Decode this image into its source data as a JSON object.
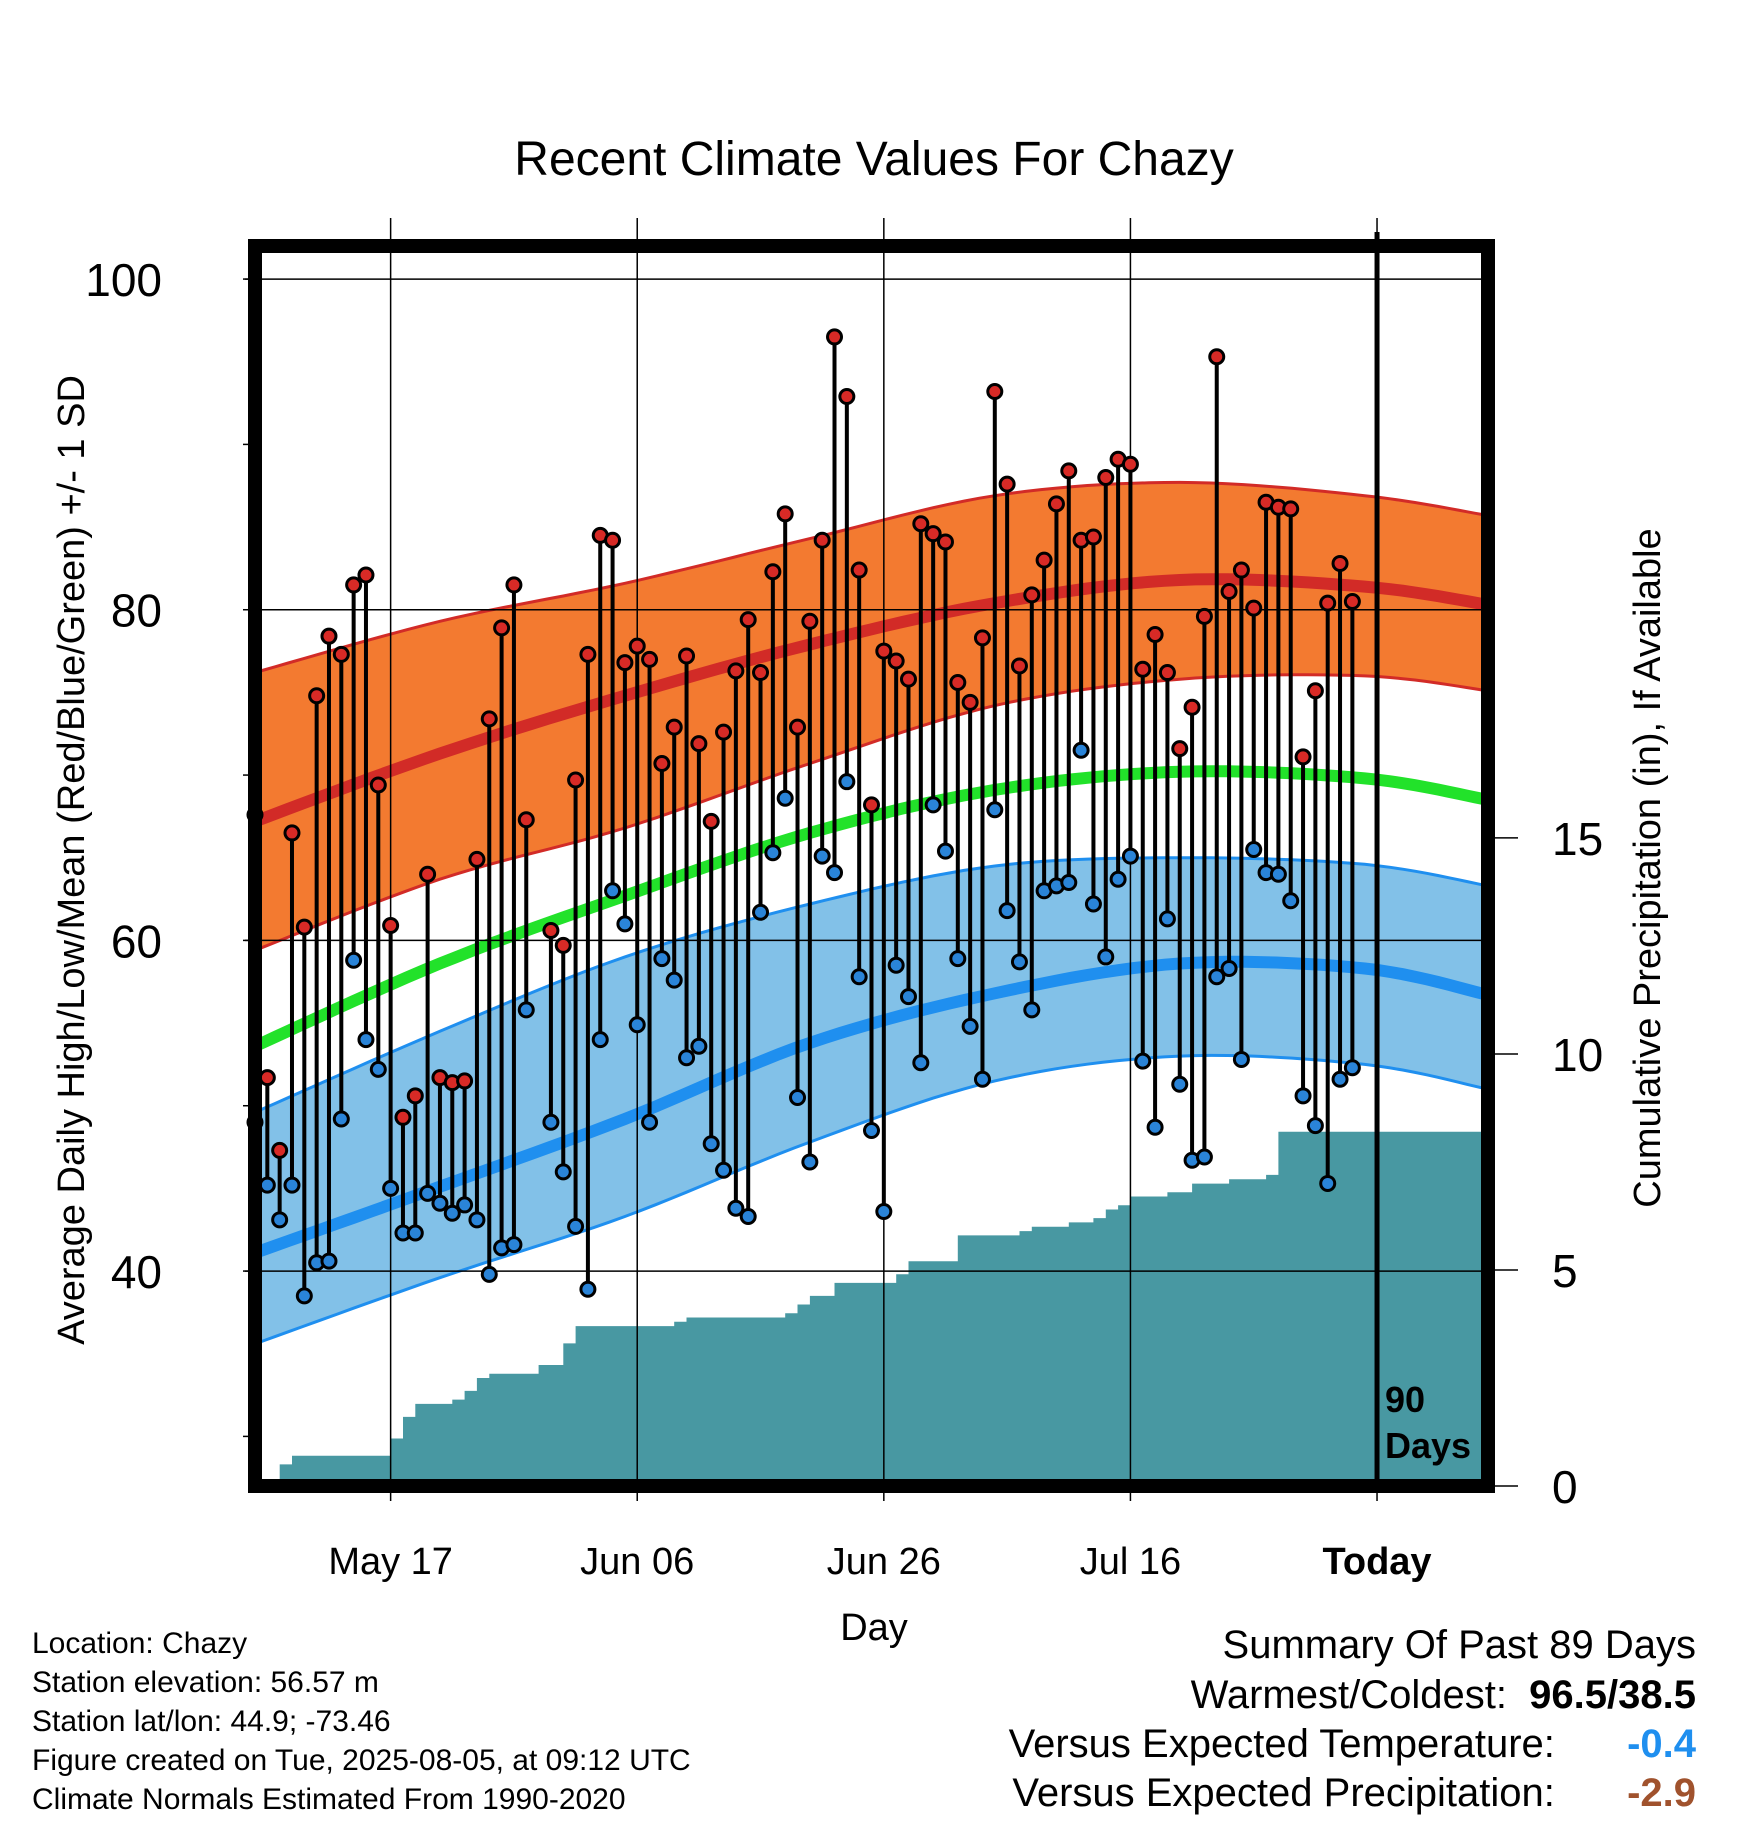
{
  "chart_data": {
    "type": "line",
    "title": "Recent Climate Values For Chazy",
    "xlabel": "Day",
    "ylabel": "Average Daily High/Low/Mean (Red/Blue/Green) +/- 1 SD",
    "y2label": "Cumulative Precipitation (in), If Available",
    "ylim": [
      27,
      102
    ],
    "y_ticks": [
      40,
      60,
      80,
      100
    ],
    "y2lim": [
      0,
      28.7
    ],
    "y2_ticks": [
      0,
      5,
      10,
      15
    ],
    "x_tick_labels": [
      "May 17",
      "Jun 06",
      "Jun 26",
      "Jul 16",
      "Today"
    ],
    "x_tick_days": [
      "2025-05-17",
      "2025-06-06",
      "2025-06-26",
      "2025-07-16",
      "2025-08-05"
    ],
    "x_start": "2025-05-06",
    "x_end": "2025-08-14",
    "today_marker": {
      "date": "2025-08-05",
      "label": "90 Days"
    },
    "grid": true,
    "colors": {
      "high_band": "#f37a30",
      "high_line": "#d22b27",
      "low_band": "#82c1e8",
      "low_line": "#1f8fef",
      "mean_line": "#22e22a",
      "precip": "#4898a2",
      "high_dot": "#d82a26",
      "low_dot": "#2a84d8"
    },
    "normals": {
      "dates": [
        "2025-05-06",
        "2025-05-21",
        "2025-06-05",
        "2025-06-20",
        "2025-07-05",
        "2025-07-20",
        "2025-08-04",
        "2025-08-14"
      ],
      "high_mean": [
        67.2,
        71.3,
        74.8,
        77.9,
        80.4,
        81.8,
        81.4,
        80.3
      ],
      "high_plus_sd": [
        76.2,
        79.3,
        81.6,
        84.3,
        86.9,
        87.7,
        86.9,
        85.7
      ],
      "high_minus_sd": [
        59.4,
        63.7,
        66.8,
        70.7,
        74.2,
        75.8,
        76.0,
        75.1
      ],
      "mean": [
        53.6,
        58.6,
        62.7,
        66.5,
        69.1,
        70.2,
        69.8,
        68.5
      ],
      "low_mean": [
        41.1,
        45.1,
        49.2,
        53.8,
        56.8,
        58.6,
        58.3,
        56.7
      ],
      "low_plus_sd": [
        49.6,
        54.5,
        59.0,
        62.2,
        64.5,
        65.0,
        64.6,
        63.3
      ],
      "low_minus_sd": [
        35.6,
        39.6,
        43.3,
        47.8,
        51.5,
        53.0,
        52.5,
        51.0
      ]
    },
    "series": [
      {
        "name": "High",
        "start": "2025-05-06",
        "values": [
          67.6,
          51.7,
          47.3,
          66.5,
          60.8,
          74.8,
          78.4,
          77.3,
          81.5,
          82.1,
          69.4,
          60.9,
          49.3,
          50.6,
          64.0,
          51.7,
          51.4,
          51.5,
          64.9,
          73.4,
          78.9,
          81.5,
          67.3,
          null,
          60.6,
          59.7,
          69.7,
          77.3,
          84.5,
          84.2,
          76.8,
          77.8,
          77.0,
          70.7,
          72.9,
          77.2,
          71.9,
          67.2,
          72.6,
          76.3,
          79.4,
          76.2,
          82.3,
          85.8,
          72.9,
          79.3,
          84.2,
          96.5,
          92.9,
          82.4,
          68.2,
          77.5,
          76.9,
          75.8,
          85.2,
          84.6,
          84.1,
          75.6,
          74.4,
          78.3,
          93.2,
          87.6,
          76.6,
          80.9,
          83.0,
          86.4,
          88.4,
          84.2,
          84.4,
          88.0,
          89.1,
          88.8,
          76.4,
          78.5,
          76.2,
          71.6,
          74.1,
          79.6,
          95.3,
          81.1,
          82.4,
          80.1,
          86.5,
          86.2,
          86.1,
          71.1,
          75.1,
          80.4,
          82.8,
          80.5
        ]
      },
      {
        "name": "Low",
        "start": "2025-05-06",
        "values": [
          49.0,
          45.2,
          43.1,
          45.2,
          38.5,
          40.5,
          40.6,
          49.2,
          58.8,
          54.0,
          52.2,
          45.0,
          42.3,
          42.3,
          44.7,
          44.1,
          43.5,
          44.0,
          43.1,
          39.8,
          41.4,
          41.6,
          55.8,
          null,
          49.0,
          46.0,
          42.7,
          38.9,
          54.0,
          63.0,
          61.0,
          54.9,
          49.0,
          58.9,
          57.6,
          52.9,
          53.6,
          47.7,
          46.1,
          43.8,
          43.3,
          61.7,
          65.3,
          68.6,
          50.5,
          46.6,
          65.1,
          64.1,
          69.6,
          57.8,
          48.5,
          43.6,
          58.5,
          56.6,
          52.6,
          68.2,
          65.4,
          58.9,
          54.8,
          51.6,
          67.9,
          61.8,
          58.7,
          55.8,
          63.0,
          63.3,
          63.5,
          71.5,
          62.2,
          59.0,
          63.7,
          65.1,
          52.7,
          48.7,
          61.3,
          51.3,
          46.7,
          46.9,
          57.8,
          58.3,
          52.8,
          65.5,
          64.1,
          64.0,
          62.4,
          50.6,
          48.8,
          45.3,
          51.6,
          52.3
        ]
      },
      {
        "name": "Cumulative Precipitation",
        "start": "2025-05-06",
        "values": [
          0.0,
          0.0,
          0.5,
          0.7,
          0.7,
          0.7,
          0.7,
          0.7,
          0.7,
          0.7,
          0.7,
          1.1,
          1.6,
          1.9,
          1.9,
          1.9,
          2.0,
          2.2,
          2.5,
          2.6,
          2.6,
          2.6,
          2.6,
          2.8,
          2.8,
          3.3,
          3.7,
          3.7,
          3.7,
          3.7,
          3.7,
          3.7,
          3.7,
          3.7,
          3.8,
          3.9,
          3.9,
          3.9,
          3.9,
          3.9,
          3.9,
          3.9,
          3.9,
          4.0,
          4.2,
          4.4,
          4.4,
          4.7,
          4.7,
          4.7,
          4.7,
          4.7,
          4.9,
          5.2,
          5.2,
          5.2,
          5.2,
          5.8,
          5.8,
          5.8,
          5.8,
          5.8,
          5.9,
          6.0,
          6.0,
          6.0,
          6.1,
          6.1,
          6.2,
          6.4,
          6.5,
          6.7,
          6.7,
          6.7,
          6.8,
          6.8,
          7.0,
          7.0,
          7.0,
          7.1,
          7.1,
          7.1,
          7.2,
          8.2,
          8.2,
          8.2,
          8.2,
          8.2,
          8.2,
          8.2,
          8.2,
          8.2,
          8.2,
          8.2,
          8.2,
          8.2,
          8.2,
          8.2,
          8.2,
          8.2,
          8.2
        ]
      }
    ]
  },
  "info": {
    "location": "Location: Chazy",
    "elevation": "Station elevation: 56.57 m",
    "latlon": "Station lat/lon: 44.9; -73.46",
    "created": "Figure created on Tue, 2025-08-05, at 09:12 UTC",
    "normals": "Climate Normals Estimated From 1990-2020"
  },
  "summary": {
    "heading": "Summary Of Past 89 Days",
    "warm_label": "Warmest/Coldest:",
    "warm_value": "96.5/38.5",
    "temp_label": "Versus Expected Temperature:",
    "temp_value": "-0.4",
    "temp_color": "#1f8fef",
    "precip_label": "Versus Expected Precipitation:",
    "precip_value": "-2.9",
    "precip_color": "#a0522d"
  }
}
